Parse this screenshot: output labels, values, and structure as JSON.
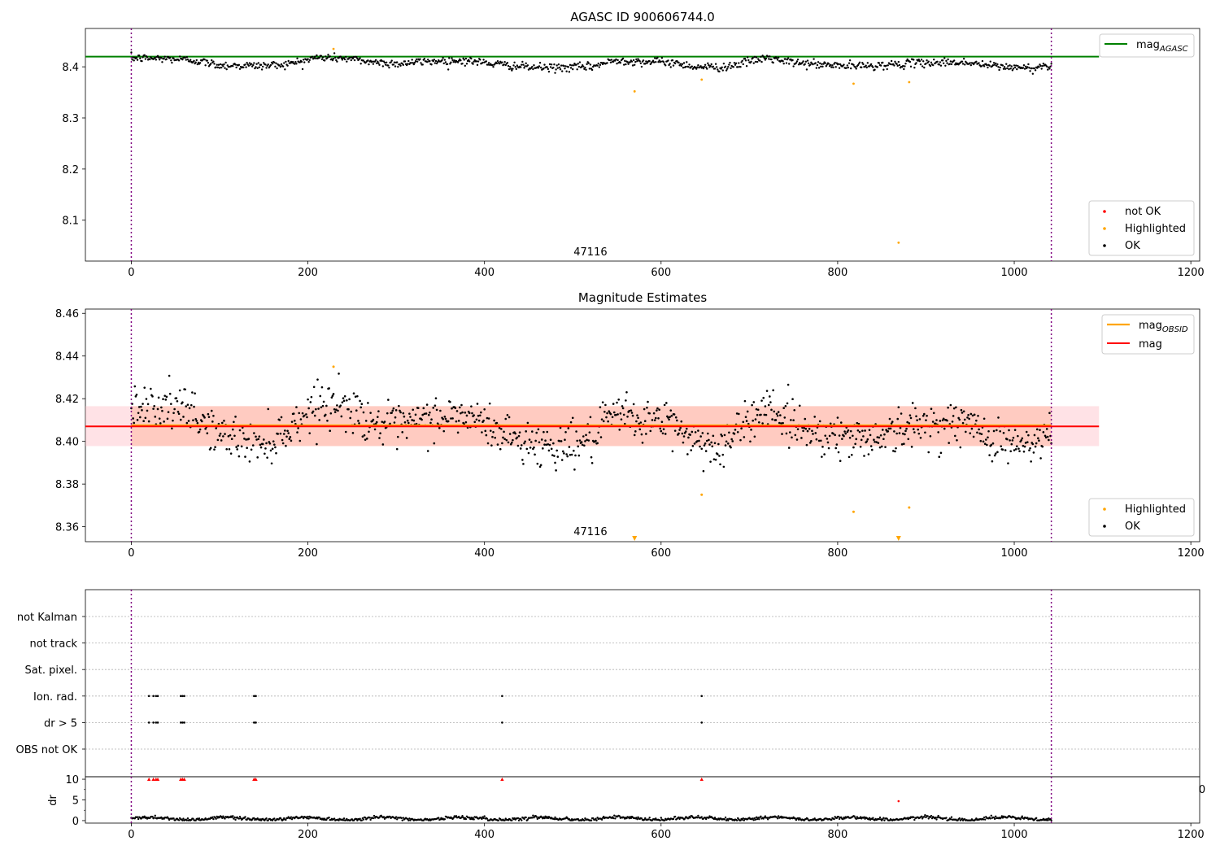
{
  "chart_data": [
    {
      "type": "scatter",
      "title": "AGASC ID 900606744.0",
      "xlim": [
        -52,
        1210
      ],
      "ylim": [
        8.02,
        8.475
      ],
      "x_ticks": [
        0,
        200,
        400,
        600,
        800,
        1000,
        1200
      ],
      "y_ticks": [
        8.1,
        8.2,
        8.3,
        8.4
      ],
      "y_tick_labels": [
        "8.1",
        "8.2",
        "8.3",
        "8.4"
      ],
      "annotation": {
        "text": "47116",
        "x": 520,
        "y": 8.031
      },
      "vlines": [
        0,
        1042
      ],
      "hline": {
        "name": "mag",
        "sub": "AGASC",
        "y": 8.42,
        "x_range": [
          -52,
          1096
        ],
        "color": "#008000"
      },
      "ok_points": {
        "name": "OK",
        "color": "#000000",
        "n": 1043,
        "x_range": [
          0,
          1042
        ],
        "mean": 8.407,
        "noise": 0.004,
        "wave": [
          [
            0,
            8.417
          ],
          [
            40,
            8.416
          ],
          [
            70,
            8.413
          ],
          [
            100,
            8.403
          ],
          [
            150,
            8.402
          ],
          [
            180,
            8.406
          ],
          [
            210,
            8.418
          ],
          [
            240,
            8.417
          ],
          [
            270,
            8.41
          ],
          [
            300,
            8.406
          ],
          [
            340,
            8.411
          ],
          [
            380,
            8.412
          ],
          [
            420,
            8.404
          ],
          [
            450,
            8.399
          ],
          [
            480,
            8.398
          ],
          [
            520,
            8.4
          ],
          [
            550,
            8.413
          ],
          [
            580,
            8.41
          ],
          [
            610,
            8.409
          ],
          [
            640,
            8.4
          ],
          [
            670,
            8.399
          ],
          [
            700,
            8.41
          ],
          [
            720,
            8.418
          ],
          [
            740,
            8.41
          ],
          [
            780,
            8.404
          ],
          [
            820,
            8.401
          ],
          [
            860,
            8.404
          ],
          [
            900,
            8.408
          ],
          [
            940,
            8.409
          ],
          [
            980,
            8.401
          ],
          [
            1020,
            8.397
          ],
          [
            1042,
            8.404
          ]
        ]
      },
      "highlighted_points": {
        "name": "Highlighted",
        "color": "#ffa500",
        "points": [
          [
            229,
            8.435
          ],
          [
            570,
            8.352
          ],
          [
            646,
            8.375
          ],
          [
            818,
            8.367
          ],
          [
            869,
            8.056
          ],
          [
            881,
            8.37
          ]
        ]
      },
      "not_ok_points": {
        "name": "not OK",
        "color": "#ff0000",
        "points": []
      },
      "legend_top": [
        {
          "label": "mag",
          "sub": "AGASC",
          "color": "#008000",
          "kind": "line"
        }
      ],
      "legend_bottom": [
        {
          "label": "not OK",
          "color": "#ff0000",
          "kind": "dot"
        },
        {
          "label": "Highlighted",
          "color": "#ffa500",
          "kind": "dot"
        },
        {
          "label": "OK",
          "color": "#000000",
          "kind": "dot"
        }
      ]
    },
    {
      "type": "scatter",
      "title": "Magnitude Estimates",
      "xlim": [
        -52,
        1210
      ],
      "ylim": [
        8.353,
        8.462
      ],
      "x_ticks": [
        0,
        200,
        400,
        600,
        800,
        1000,
        1200
      ],
      "y_ticks": [
        8.36,
        8.38,
        8.4,
        8.42,
        8.44,
        8.46
      ],
      "y_tick_labels": [
        "8.36",
        "8.38",
        "8.40",
        "8.42",
        "8.44",
        "8.46"
      ],
      "annotation": {
        "text": "47116",
        "x": 520,
        "y": 8.356
      },
      "vlines": [
        0,
        1042
      ],
      "band_outer": {
        "y_range": [
          8.3978,
          8.4165
        ],
        "x_range": [
          -52,
          1096
        ],
        "color": "#ffb6c1"
      },
      "band_inner": {
        "y_range": [
          8.3978,
          8.4165
        ],
        "x_range": [
          0,
          1042
        ],
        "color": "#ffa07a"
      },
      "mag_obsid": {
        "name": "mag",
        "sub": "OBSID",
        "y": 8.4075,
        "x_range": [
          0,
          1042
        ],
        "color": "#ffa500"
      },
      "mag_line": {
        "name": "mag",
        "y": 8.407,
        "x_range": [
          -52,
          1096
        ],
        "color": "#ff0000"
      },
      "ok_points": {
        "name": "OK",
        "color": "#000000",
        "n": 1043,
        "x_range": [
          0,
          1042
        ],
        "mean": 8.407,
        "noise": 0.005,
        "wave": [
          [
            0,
            8.417
          ],
          [
            40,
            8.416
          ],
          [
            70,
            8.413
          ],
          [
            100,
            8.403
          ],
          [
            150,
            8.399
          ],
          [
            180,
            8.406
          ],
          [
            210,
            8.418
          ],
          [
            240,
            8.417
          ],
          [
            270,
            8.41
          ],
          [
            300,
            8.406
          ],
          [
            340,
            8.411
          ],
          [
            380,
            8.412
          ],
          [
            420,
            8.404
          ],
          [
            450,
            8.399
          ],
          [
            480,
            8.398
          ],
          [
            520,
            8.4
          ],
          [
            550,
            8.413
          ],
          [
            580,
            8.41
          ],
          [
            610,
            8.409
          ],
          [
            640,
            8.4
          ],
          [
            670,
            8.397
          ],
          [
            700,
            8.41
          ],
          [
            720,
            8.418
          ],
          [
            740,
            8.41
          ],
          [
            780,
            8.404
          ],
          [
            820,
            8.401
          ],
          [
            860,
            8.404
          ],
          [
            900,
            8.408
          ],
          [
            940,
            8.409
          ],
          [
            980,
            8.401
          ],
          [
            1020,
            8.397
          ],
          [
            1042,
            8.404
          ]
        ]
      },
      "highlighted_points": {
        "name": "Highlighted",
        "color": "#ffa500",
        "points": [
          [
            229,
            8.435
          ],
          [
            646,
            8.375
          ],
          [
            818,
            8.367
          ],
          [
            881,
            8.369
          ]
        ]
      },
      "offscale_markers": {
        "color": "#ffa500",
        "x": [
          570,
          869
        ]
      },
      "legend_top": [
        {
          "label": "mag",
          "sub": "OBSID",
          "color": "#ffa500",
          "kind": "line"
        },
        {
          "label": "mag",
          "color": "#ff0000",
          "kind": "line"
        }
      ],
      "legend_bottom": [
        {
          "label": "Highlighted",
          "color": "#ffa500",
          "kind": "dot"
        },
        {
          "label": "OK",
          "color": "#000000",
          "kind": "dot"
        }
      ]
    },
    {
      "type": "scatter",
      "title": "",
      "xlim": [
        -52,
        1210
      ],
      "x_ticks": [
        0,
        200,
        400,
        600,
        800,
        1000,
        1200
      ],
      "vlines": [
        0,
        1042
      ],
      "categories": [
        "not Kalman",
        "not track",
        "Sat. pixel.",
        "Ion. rad.",
        "dr > 5",
        "OBS not OK"
      ],
      "flag_x": [
        20,
        25,
        28,
        30,
        56,
        58,
        60,
        139,
        141,
        420,
        646
      ],
      "flag_rows": [
        "Ion. rad.",
        "dr > 5"
      ]
    },
    {
      "type": "scatter",
      "title": "",
      "xlim": [
        -52,
        1210
      ],
      "ylim": [
        -0.6,
        10.6
      ],
      "ylabel": "dr",
      "y_ticks": [
        0,
        5,
        10
      ],
      "y_tick_labels": [
        "0",
        "5",
        "10"
      ],
      "x_ticks": [
        0,
        200,
        400,
        600,
        800,
        1000,
        1200
      ],
      "x_tick_labels": [
        "0",
        "200",
        "400",
        "600",
        "800",
        "1000",
        "1200"
      ],
      "vlines": [
        0,
        1042
      ],
      "right_overflow_label": "0",
      "dr_points": {
        "color": "#000000",
        "n": 1043,
        "x_range": [
          0,
          1042
        ],
        "mean": 0.5,
        "noise": 0.2
      },
      "capped": {
        "color": "#ff0000",
        "y": 10,
        "x": [
          20,
          25,
          28,
          30,
          56,
          58,
          60,
          139,
          141,
          420,
          646
        ]
      },
      "extra_red": {
        "color": "#ff0000",
        "points": [
          [
            869,
            4.7
          ]
        ]
      }
    }
  ]
}
